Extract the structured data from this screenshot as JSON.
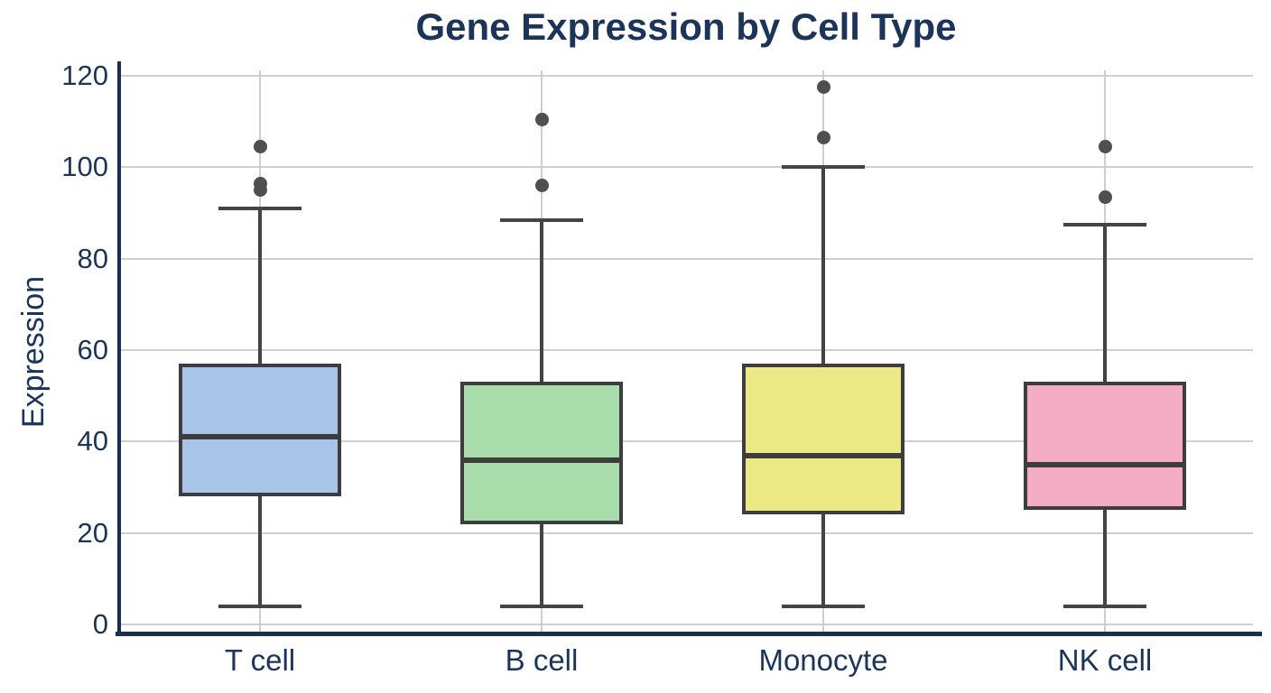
{
  "chart_data": {
    "type": "box",
    "title": "Gene Expression by Cell Type",
    "xlabel": "",
    "ylabel": "Expression",
    "categories": [
      "T cell",
      "B cell",
      "Monocyte",
      "NK cell"
    ],
    "yticks": [
      0,
      20,
      40,
      60,
      80,
      100,
      120
    ],
    "ylim": [
      -3,
      123
    ],
    "grid": {
      "horizontal": true,
      "vertical_category_lines": true
    },
    "legend_position": "none",
    "series": [
      {
        "category": "T cell",
        "whisker_low": 4,
        "q1": 28,
        "median": 41,
        "q3": 57,
        "whisker_high": 91,
        "outliers": [
          95,
          96.5,
          104.5
        ],
        "fill_color": "#a8c4e8"
      },
      {
        "category": "B cell",
        "whisker_low": 4,
        "q1": 22,
        "median": 36,
        "q3": 53,
        "whisker_high": 88.5,
        "outliers": [
          96,
          110.5
        ],
        "fill_color": "#a9dcab"
      },
      {
        "category": "Monocyte",
        "whisker_low": 4,
        "q1": 24,
        "median": 37,
        "q3": 57,
        "whisker_high": 100,
        "outliers": [
          106.5,
          117.5
        ],
        "fill_color": "#ece886"
      },
      {
        "category": "NK cell",
        "whisker_low": 4,
        "q1": 25,
        "median": 35,
        "q3": 53,
        "whisker_high": 87.5,
        "outliers": [
          93.5,
          104.5
        ],
        "fill_color": "#f4abc4"
      }
    ],
    "colors": {
      "title_text": "#1b3457",
      "tick_text": "#1b3457",
      "axis_spine": "#16304d",
      "gridline": "#cfcfcf",
      "box_border": "#3d3d3d",
      "whisker": "#444444",
      "outlier": "#4f4f4f",
      "background": "#ffffff"
    }
  }
}
